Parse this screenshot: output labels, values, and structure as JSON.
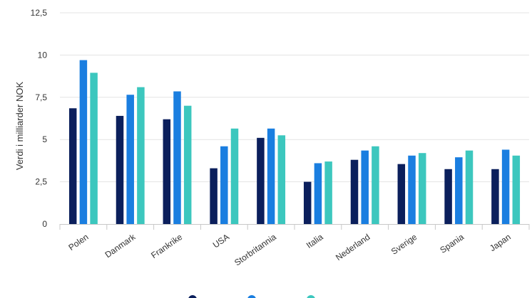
{
  "chart_data": {
    "type": "bar",
    "title": "",
    "xlabel": "",
    "ylabel": "Verdi i milliarder NOK",
    "ylim": [
      0,
      12.5
    ],
    "yticks": [
      "0",
      "2,5",
      "5",
      "7,5",
      "10",
      "12,5"
    ],
    "ytick_values": [
      0,
      2.5,
      5,
      7.5,
      10,
      12.5
    ],
    "grid": true,
    "legend_position": "bottom",
    "categories": [
      "Polen",
      "Danmark",
      "Frankrike",
      "USA",
      "Storbritannia",
      "Italia",
      "Nederland",
      "Sverige",
      "Spania",
      "Japan"
    ],
    "series": [
      {
        "color": "#0b1f5c",
        "values": [
          6.85,
          6.4,
          6.2,
          3.3,
          5.1,
          2.5,
          3.8,
          3.55,
          3.25,
          3.25
        ]
      },
      {
        "color": "#1a7ee0",
        "values": [
          9.7,
          7.65,
          7.85,
          4.6,
          5.65,
          3.6,
          4.35,
          4.05,
          3.95,
          4.4
        ]
      },
      {
        "color": "#3cc7be",
        "values": [
          8.95,
          8.1,
          7.0,
          5.65,
          5.25,
          3.7,
          4.6,
          4.2,
          4.35,
          4.05
        ]
      }
    ]
  }
}
